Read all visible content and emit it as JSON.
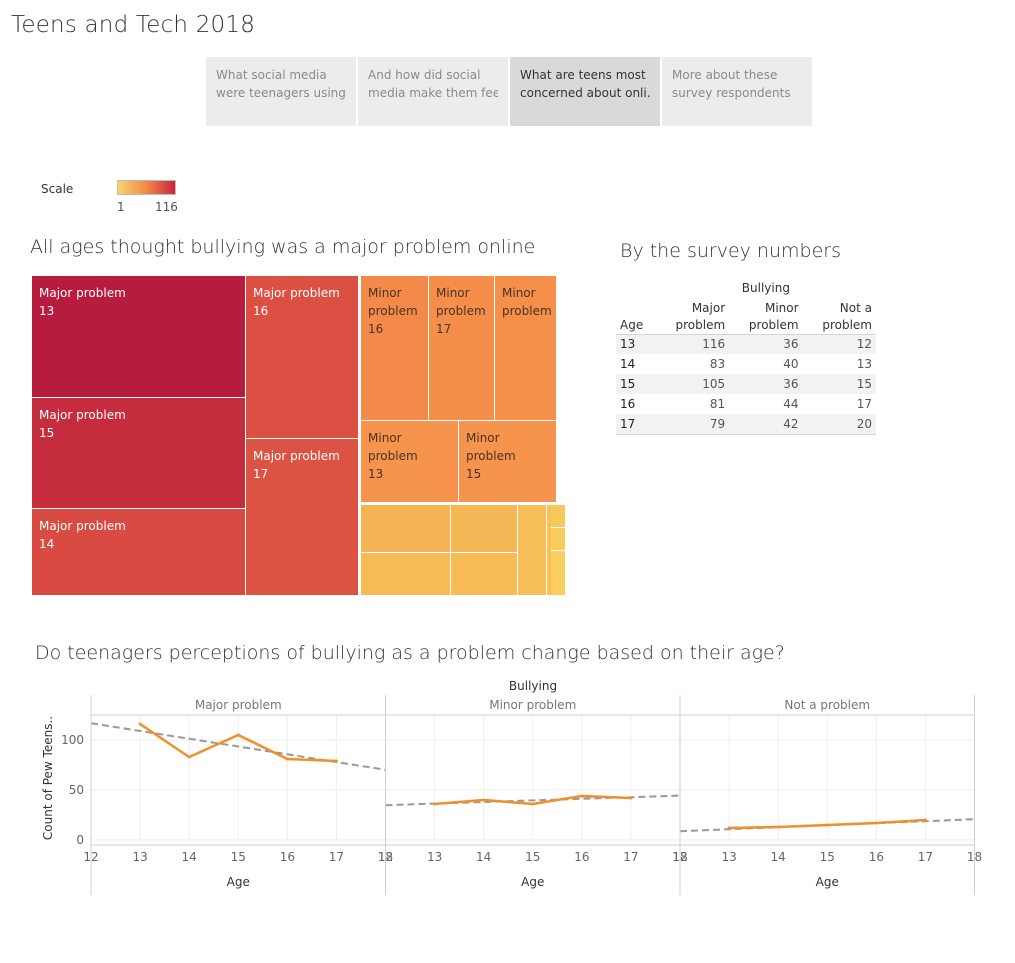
{
  "app": {
    "title": "Teens and Tech 2018"
  },
  "tabs": [
    {
      "line1": "What social media",
      "line2": "were teenagers using..",
      "active": false
    },
    {
      "line1": "And how did social",
      "line2": "media make them fee..",
      "active": false
    },
    {
      "line1": "What are teens most",
      "line2": "concerned about onli..",
      "active": true
    },
    {
      "line1": "More about these",
      "line2": "survey respondents",
      "active": false
    }
  ],
  "legend": {
    "title": "Scale",
    "min": "1",
    "max": "116"
  },
  "treemap": {
    "title": "All ages thought bullying was a major problem online",
    "cells": [
      {
        "line1": "Major problem",
        "line2": "13",
        "value": 116,
        "color": "#b71c3f"
      },
      {
        "line1": "Major problem",
        "line2": "15",
        "value": 105,
        "color": "#c52c3e"
      },
      {
        "line1": "Major problem",
        "line2": "14",
        "value": 83,
        "color": "#d84a42"
      },
      {
        "line1": "Major problem",
        "line2": "16",
        "value": 81,
        "color": "#db5042"
      },
      {
        "line1": "Major problem",
        "line2": "17",
        "value": 79,
        "color": "#dc5343"
      },
      {
        "line1": "Minor",
        "line2": "problem",
        "line3": "16",
        "value": 44,
        "color": "#f48a4a"
      },
      {
        "line1": "Minor",
        "line2": "problem",
        "line3": "17",
        "value": 42,
        "color": "#f58e4b"
      },
      {
        "line1": "Minor",
        "line2": "problem",
        "line3": "",
        "value": 40,
        "color": "#f5904b"
      },
      {
        "line1": "Minor",
        "line2": "problem",
        "line3": "13",
        "value": 36,
        "color": "#f6934d"
      },
      {
        "line1": "Minor",
        "line2": "problem",
        "line3": "15",
        "value": 36,
        "color": "#f6934d"
      }
    ],
    "small_cells": [
      {
        "value": 20,
        "color": "#f5b355"
      },
      {
        "value": 17,
        "color": "#f5b655"
      },
      {
        "value": 15,
        "color": "#f6ba57"
      },
      {
        "value": 13,
        "color": "#f6bb57"
      },
      {
        "value": 12,
        "color": "#f7bd58"
      },
      {
        "value": 6,
        "color": "#f7c059"
      },
      {
        "value": 4,
        "color": "#f8c85c"
      },
      {
        "value": 2,
        "color": "#f8cb5d"
      },
      {
        "value": 1,
        "color": "#f9ce5f"
      }
    ]
  },
  "survey_table": {
    "title": "By the survey numbers",
    "group_header": "Bullying",
    "col_age": "Age",
    "columns": [
      {
        "line1": "Major",
        "line2": "problem"
      },
      {
        "line1": "Minor",
        "line2": "problem"
      },
      {
        "line1": "Not a",
        "line2": "problem"
      }
    ],
    "rows": [
      {
        "age": "13",
        "values": [
          "116",
          "36",
          "12"
        ]
      },
      {
        "age": "14",
        "values": [
          "83",
          "40",
          "13"
        ]
      },
      {
        "age": "15",
        "values": [
          "105",
          "36",
          "15"
        ]
      },
      {
        "age": "16",
        "values": [
          "81",
          "44",
          "17"
        ]
      },
      {
        "age": "17",
        "values": [
          "79",
          "42",
          "20"
        ]
      }
    ]
  },
  "line_section": {
    "title": "Do teenagers perceptions of bullying as a problem change based on their age?"
  },
  "chart_data": [
    {
      "type": "treemap",
      "title": "All ages thought bullying was a major problem online",
      "categories": [
        "Major problem 13",
        "Major problem 15",
        "Major problem 14",
        "Major problem 16",
        "Major problem 17",
        "Minor problem 16",
        "Minor problem 17",
        "Minor problem",
        "Minor problem 13",
        "Minor problem 15"
      ],
      "values": [
        116,
        105,
        83,
        81,
        79,
        44,
        42,
        40,
        36,
        36
      ],
      "color_scale": {
        "min": 1,
        "max": 116,
        "low_color": "#f9d36b",
        "high_color": "#c8243f"
      }
    },
    {
      "type": "table",
      "title": "By the survey numbers",
      "header": "Bullying",
      "columns": [
        "Age",
        "Major problem",
        "Minor problem",
        "Not a problem"
      ],
      "rows": [
        [
          13,
          116,
          36,
          12
        ],
        [
          14,
          83,
          40,
          13
        ],
        [
          15,
          105,
          36,
          15
        ],
        [
          16,
          81,
          44,
          17
        ],
        [
          17,
          79,
          42,
          20
        ]
      ]
    },
    {
      "type": "line",
      "title": "Do teenagers perceptions of bullying as a problem change based on their age?",
      "header": "Bullying",
      "ylabel": "Count of Pew Teens..",
      "xlabel": "Age",
      "xlim": [
        12,
        18
      ],
      "xticks": [
        12,
        13,
        14,
        15,
        16,
        17,
        18
      ],
      "ylim": [
        0,
        125
      ],
      "yticks": [
        0,
        50,
        100
      ],
      "grid": true,
      "line_color": "#f28e2b",
      "trend_color": "#999999",
      "panels": [
        {
          "name": "Major problem",
          "x": [
            13,
            14,
            15,
            16,
            17
          ],
          "y": [
            116,
            83,
            105,
            81,
            79
          ],
          "trend": [
            [
              12,
              116.8
            ],
            [
              18,
              70.2
            ]
          ]
        },
        {
          "name": "Minor problem",
          "x": [
            13,
            14,
            15,
            16,
            17
          ],
          "y": [
            36,
            40,
            36,
            44,
            42
          ],
          "trend": [
            [
              12,
              34.8
            ],
            [
              18,
              44.4
            ]
          ]
        },
        {
          "name": "Not a problem",
          "x": [
            13,
            14,
            15,
            16,
            17
          ],
          "y": [
            12,
            13,
            15,
            17,
            20
          ],
          "trend": [
            [
              12,
              8.8
            ],
            [
              18,
              20.8
            ]
          ]
        }
      ]
    }
  ]
}
